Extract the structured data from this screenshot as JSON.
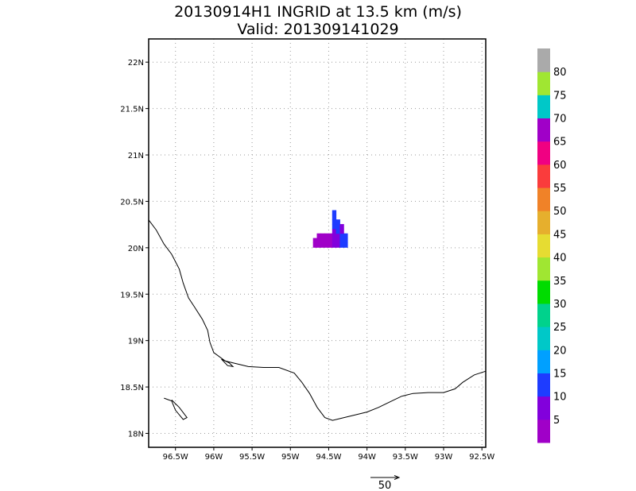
{
  "title": {
    "line1": "20130914H1 INGRID at 13.5 km (m/s)",
    "line2": "Valid: 201309141029"
  },
  "map": {
    "lon_range": [
      -96.85,
      -92.45
    ],
    "lat_range": [
      17.85,
      22.25
    ],
    "lon_ticks": [
      {
        "value": -96.5,
        "label": "96.5W"
      },
      {
        "value": -96.0,
        "label": "96W"
      },
      {
        "value": -95.5,
        "label": "95.5W"
      },
      {
        "value": -95.0,
        "label": "95W"
      },
      {
        "value": -94.5,
        "label": "94.5W"
      },
      {
        "value": -94.0,
        "label": "94W"
      },
      {
        "value": -93.5,
        "label": "93.5W"
      },
      {
        "value": -93.0,
        "label": "93W"
      },
      {
        "value": -92.5,
        "label": "92.5W"
      }
    ],
    "lat_ticks": [
      {
        "value": 22.0,
        "label": "22N"
      },
      {
        "value": 21.5,
        "label": "21.5N"
      },
      {
        "value": 21.0,
        "label": "21N"
      },
      {
        "value": 20.5,
        "label": "20.5N"
      },
      {
        "value": 20.0,
        "label": "20N"
      },
      {
        "value": 19.5,
        "label": "19.5N"
      },
      {
        "value": 19.0,
        "label": "19N"
      },
      {
        "value": 18.5,
        "label": "18.5N"
      },
      {
        "value": 18.0,
        "label": "18N"
      }
    ],
    "grid": "dotted"
  },
  "colorbar": {
    "colors": [
      "#a000c8",
      "#8200dc",
      "#1e3cff",
      "#00a0ff",
      "#00c8c8",
      "#00d28c",
      "#00dc00",
      "#a0e632",
      "#e6dc32",
      "#e6af2d",
      "#f08228",
      "#fa3c3c",
      "#f00082",
      "#a000c8",
      "#00c8c8",
      "#a0e632",
      "#aaaaaa"
    ],
    "labels": [
      "5",
      "10",
      "15",
      "20",
      "25",
      "30",
      "35",
      "40",
      "45",
      "50",
      "55",
      "60",
      "65",
      "70",
      "75",
      "80"
    ]
  },
  "wind_data": {
    "description_free": true,
    "cells": [
      {
        "lon": -94.68,
        "lat": 20.03,
        "speed": 3
      },
      {
        "lon": -94.63,
        "lat": 20.03,
        "speed": 3
      },
      {
        "lon": -94.58,
        "lat": 20.03,
        "speed": 4
      },
      {
        "lon": -94.53,
        "lat": 20.03,
        "speed": 3
      },
      {
        "lon": -94.48,
        "lat": 20.03,
        "speed": 4
      },
      {
        "lon": -94.43,
        "lat": 20.03,
        "speed": 6
      },
      {
        "lon": -94.38,
        "lat": 20.03,
        "speed": 8
      },
      {
        "lon": -94.33,
        "lat": 20.03,
        "speed": 12
      },
      {
        "lon": -94.28,
        "lat": 20.03,
        "speed": 11
      },
      {
        "lon": -94.68,
        "lat": 20.08,
        "speed": 3
      },
      {
        "lon": -94.63,
        "lat": 20.08,
        "speed": 4
      },
      {
        "lon": -94.58,
        "lat": 20.08,
        "speed": 3
      },
      {
        "lon": -94.53,
        "lat": 20.08,
        "speed": 4
      },
      {
        "lon": -94.48,
        "lat": 20.08,
        "speed": 3
      },
      {
        "lon": -94.43,
        "lat": 20.08,
        "speed": 7
      },
      {
        "lon": -94.38,
        "lat": 20.08,
        "speed": 9
      },
      {
        "lon": -94.33,
        "lat": 20.08,
        "speed": 11
      },
      {
        "lon": -94.28,
        "lat": 20.08,
        "speed": 12
      },
      {
        "lon": -94.63,
        "lat": 20.13,
        "speed": 3
      },
      {
        "lon": -94.58,
        "lat": 20.13,
        "speed": 4
      },
      {
        "lon": -94.53,
        "lat": 20.13,
        "speed": 3
      },
      {
        "lon": -94.48,
        "lat": 20.13,
        "speed": 4
      },
      {
        "lon": -94.43,
        "lat": 20.13,
        "speed": 6
      },
      {
        "lon": -94.38,
        "lat": 20.13,
        "speed": 8
      },
      {
        "lon": -94.33,
        "lat": 20.13,
        "speed": 11
      },
      {
        "lon": -94.28,
        "lat": 20.13,
        "speed": 12
      },
      {
        "lon": -94.43,
        "lat": 20.18,
        "speed": 8
      },
      {
        "lon": -94.38,
        "lat": 20.18,
        "speed": 11
      },
      {
        "lon": -94.33,
        "lat": 20.18,
        "speed": 9
      },
      {
        "lon": -94.43,
        "lat": 20.23,
        "speed": 11
      },
      {
        "lon": -94.38,
        "lat": 20.23,
        "speed": 12
      },
      {
        "lon": -94.33,
        "lat": 20.23,
        "speed": 8
      },
      {
        "lon": -94.43,
        "lat": 20.28,
        "speed": 12
      },
      {
        "lon": -94.38,
        "lat": 20.28,
        "speed": 11
      },
      {
        "lon": -94.43,
        "lat": 20.33,
        "speed": 11
      },
      {
        "lon": -94.43,
        "lat": 20.38,
        "speed": 12
      }
    ]
  },
  "coastline": [
    [
      -96.85,
      20.3
    ],
    [
      -96.75,
      20.19
    ],
    [
      -96.65,
      20.04
    ],
    [
      -96.55,
      19.93
    ],
    [
      -96.45,
      19.77
    ],
    [
      -96.4,
      19.62
    ],
    [
      -96.33,
      19.46
    ],
    [
      -96.25,
      19.36
    ],
    [
      -96.15,
      19.23
    ],
    [
      -96.08,
      19.11
    ],
    [
      -96.05,
      18.98
    ],
    [
      -96.0,
      18.87
    ],
    [
      -95.85,
      18.78
    ],
    [
      -95.7,
      18.75
    ],
    [
      -95.55,
      18.72
    ],
    [
      -95.35,
      18.71
    ],
    [
      -95.15,
      18.71
    ],
    [
      -94.95,
      18.65
    ],
    [
      -94.85,
      18.55
    ],
    [
      -94.75,
      18.43
    ],
    [
      -94.65,
      18.28
    ],
    [
      -94.55,
      18.17
    ],
    [
      -94.45,
      18.14
    ],
    [
      -94.3,
      18.17
    ],
    [
      -94.15,
      18.2
    ],
    [
      -94.0,
      18.23
    ],
    [
      -93.85,
      18.28
    ],
    [
      -93.7,
      18.34
    ],
    [
      -93.55,
      18.4
    ],
    [
      -93.4,
      18.43
    ],
    [
      -93.2,
      18.44
    ],
    [
      -93.0,
      18.44
    ],
    [
      -92.85,
      18.48
    ],
    [
      -92.75,
      18.55
    ],
    [
      -92.6,
      18.63
    ],
    [
      -92.45,
      18.67
    ]
  ],
  "vector_key": {
    "label": "50"
  }
}
